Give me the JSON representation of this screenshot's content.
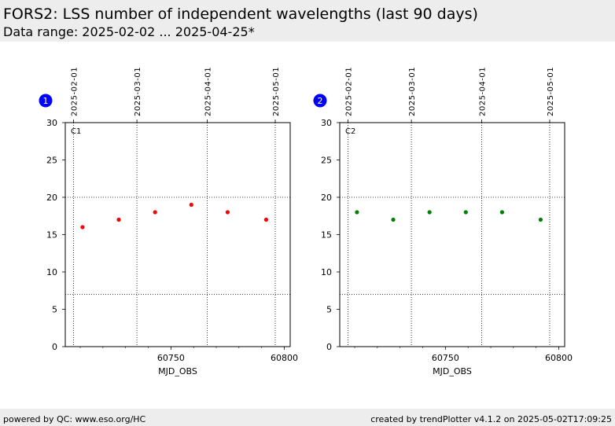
{
  "header": {
    "title": "FORS2:  LSS number of independent wavelengths (last 90 days)",
    "subtitle": "Data range: 2025-02-02 ... 2025-04-25*"
  },
  "footer": {
    "left": "powered by QC: www.eso.org/HC",
    "right": "created by trendPlotter v4.1.2 on 2025-05-02T17:09:25"
  },
  "chart_data": [
    {
      "type": "scatter",
      "badge": "1",
      "panel_label": "C1",
      "xlabel": "MJD_OBS",
      "ylabel": "",
      "xlim": [
        60703.4,
        60802.6
      ],
      "ylim": [
        0,
        30
      ],
      "x_ticks": [
        60750,
        60800
      ],
      "y_ticks": [
        0,
        5,
        10,
        15,
        20,
        25,
        30
      ],
      "top_date_ticks": [
        {
          "label": "2025-02-01",
          "mjd": 60707
        },
        {
          "label": "2025-03-01",
          "mjd": 60735
        },
        {
          "label": "2025-04-01",
          "mjd": 60766
        },
        {
          "label": "2025-05-01",
          "mjd": 60796
        }
      ],
      "hlines": [
        20,
        7
      ],
      "color": "#ff0000",
      "points": [
        {
          "x": 60711,
          "y": 16
        },
        {
          "x": 60727,
          "y": 17
        },
        {
          "x": 60743,
          "y": 18
        },
        {
          "x": 60759,
          "y": 19
        },
        {
          "x": 60775,
          "y": 18
        },
        {
          "x": 60792,
          "y": 17
        }
      ]
    },
    {
      "type": "scatter",
      "badge": "2",
      "panel_label": "C2",
      "xlabel": "MJD_OBS",
      "ylabel": "",
      "xlim": [
        60703.4,
        60802.6
      ],
      "ylim": [
        0,
        30
      ],
      "x_ticks": [
        60750,
        60800
      ],
      "y_ticks": [
        0,
        5,
        10,
        15,
        20,
        25,
        30
      ],
      "top_date_ticks": [
        {
          "label": "2025-02-01",
          "mjd": 60707
        },
        {
          "label": "2025-03-01",
          "mjd": 60735
        },
        {
          "label": "2025-04-01",
          "mjd": 60766
        },
        {
          "label": "2025-05-01",
          "mjd": 60796
        }
      ],
      "hlines": [
        20,
        7
      ],
      "color": "#008000",
      "points": [
        {
          "x": 60711,
          "y": 18
        },
        {
          "x": 60727,
          "y": 17
        },
        {
          "x": 60743,
          "y": 18
        },
        {
          "x": 60759,
          "y": 18
        },
        {
          "x": 60775,
          "y": 18
        },
        {
          "x": 60792,
          "y": 17
        }
      ]
    }
  ]
}
